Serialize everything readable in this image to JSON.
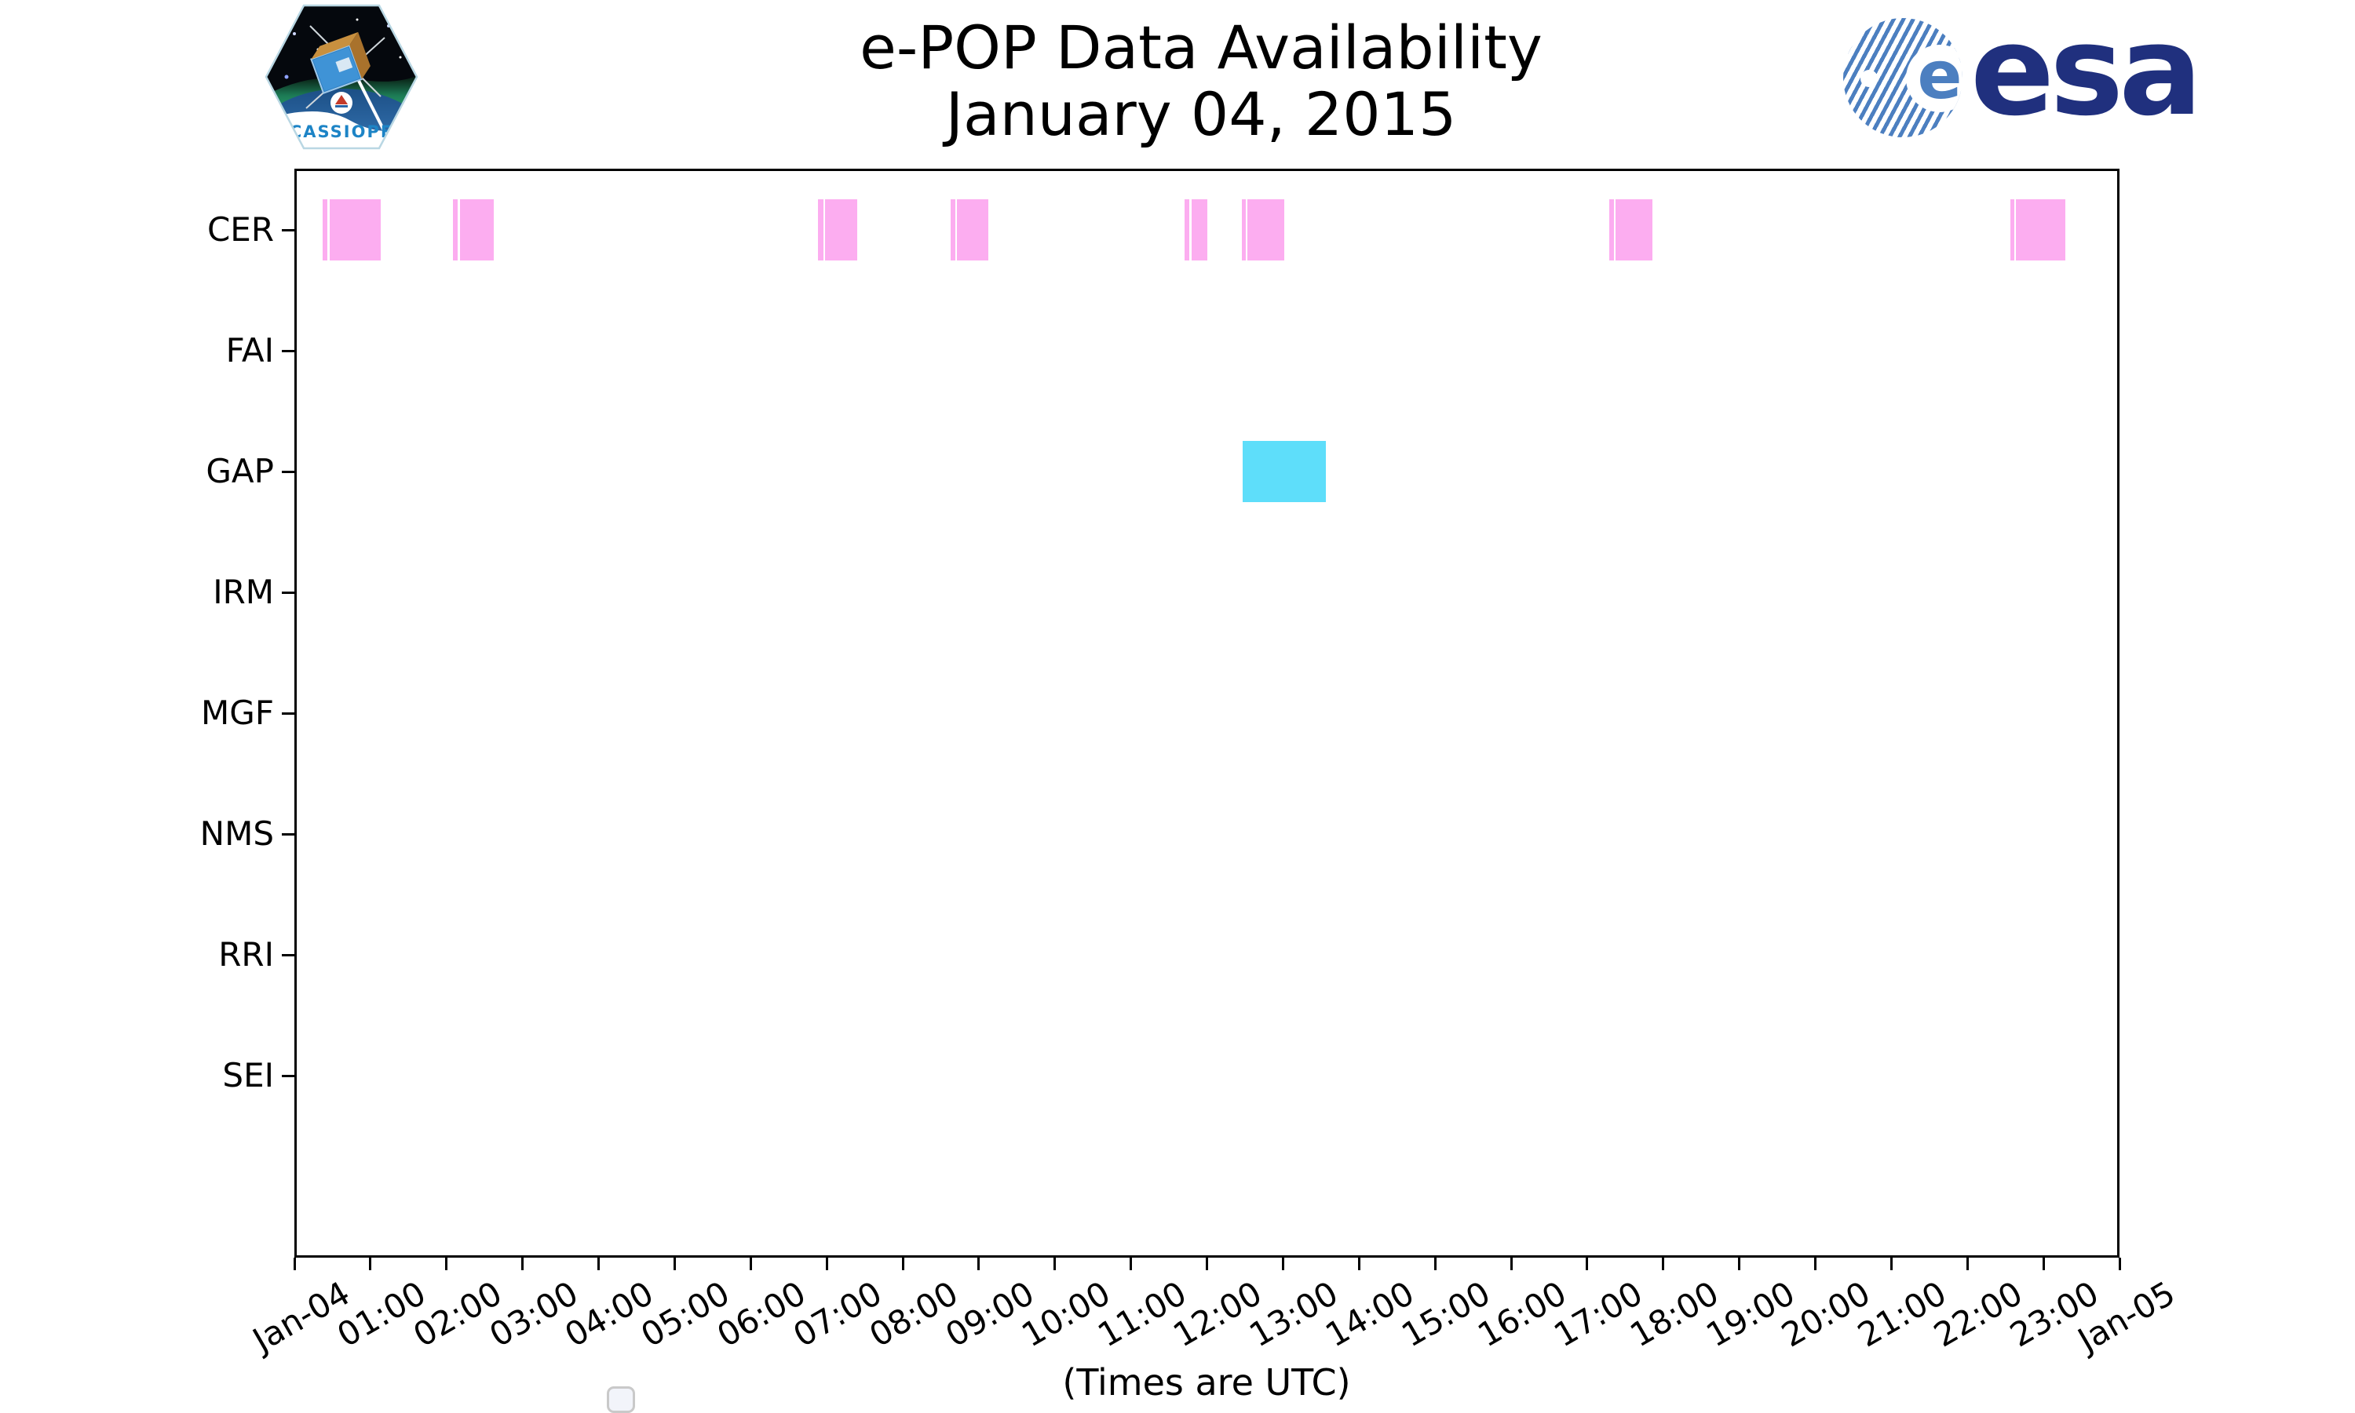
{
  "page": {
    "background": "#ffffff"
  },
  "header": {
    "title_line1": "e-POP Data Availability",
    "title_line2": "January 04, 2015"
  },
  "logos": {
    "cassiope": {
      "label": "CASSIOPE"
    },
    "esa": {
      "wordmark": "esa",
      "e_glyph": "e",
      "brand_blue": "#20307e",
      "globe_blue": "#4c7fc0"
    }
  },
  "chart_data": {
    "type": "bar",
    "variant": "availability-timeline",
    "title": "e-POP Data Availability",
    "subtitle": "January 04, 2015",
    "xlabel": "(Times are UTC)",
    "ylabel": "",
    "grid": false,
    "legend": {
      "visible": true,
      "entries": [],
      "position": "lower-left"
    },
    "rows": [
      "CER",
      "FAI",
      "GAP",
      "IRM",
      "MGF",
      "NMS",
      "RRI",
      "SEI"
    ],
    "x_axis": {
      "hours": 24,
      "start": "Jan-04 00:00 UTC",
      "end": "Jan-05 00:00 UTC",
      "tick_labels": [
        "Jan-04",
        "01:00",
        "02:00",
        "03:00",
        "04:00",
        "05:00",
        "06:00",
        "07:00",
        "08:00",
        "09:00",
        "10:00",
        "11:00",
        "12:00",
        "13:00",
        "14:00",
        "15:00",
        "16:00",
        "17:00",
        "18:00",
        "19:00",
        "20:00",
        "21:00",
        "22:00",
        "23:00",
        "Jan-05"
      ]
    },
    "series": [
      {
        "name": "CER",
        "color": "#fcadf0",
        "intervals": [
          [
            0.37,
            0.43
          ],
          [
            0.46,
            1.14
          ],
          [
            2.08,
            2.15
          ],
          [
            2.18,
            2.62
          ],
          [
            6.88,
            6.96
          ],
          [
            6.98,
            7.4
          ],
          [
            8.63,
            8.69
          ],
          [
            8.71,
            9.12
          ],
          [
            11.71,
            11.77
          ],
          [
            11.8,
            12.01
          ],
          [
            12.46,
            12.51
          ],
          [
            12.53,
            13.02
          ],
          [
            17.29,
            17.35
          ],
          [
            17.37,
            17.86
          ],
          [
            22.56,
            22.62
          ],
          [
            22.64,
            23.29
          ]
        ]
      },
      {
        "name": "GAP",
        "color": "#5edefa",
        "intervals": [
          [
            12.47,
            13.56
          ]
        ]
      }
    ]
  }
}
